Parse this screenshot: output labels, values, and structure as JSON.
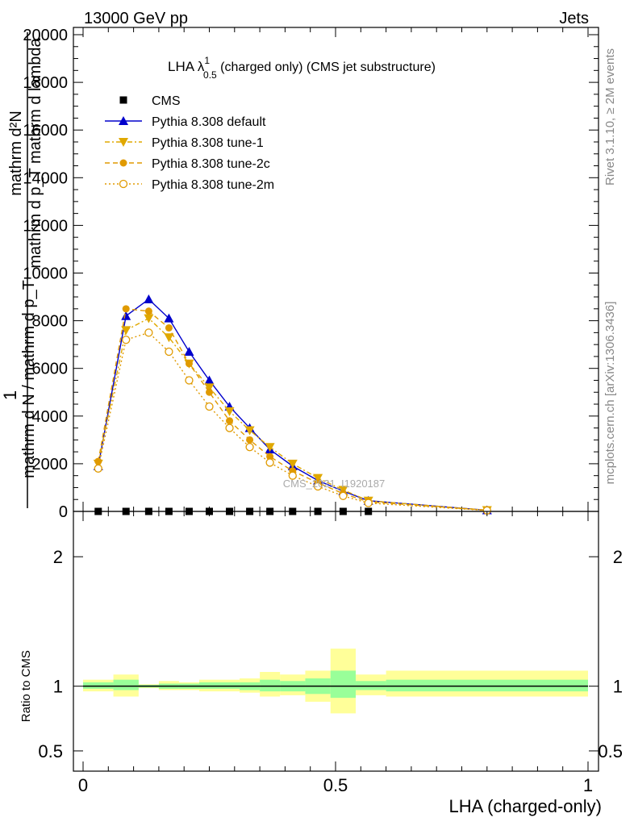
{
  "header": {
    "left": "13000 GeV pp",
    "right": "Jets"
  },
  "title": {
    "main": "LHA λ",
    "superscript": "1",
    "subscript": "0.5",
    "suffix": " (charged only) (CMS jet substructure)"
  },
  "side": {
    "rivet": "Rivet 3.1.10, ≥ 2M events",
    "mcplots": "mcplots.cern.ch [arXiv:1306.3436]"
  },
  "watermark": "CMS_2021_I1920187",
  "chart_data": [
    {
      "type": "line",
      "ylabel_top": "1",
      "ylabel_lines": [
        "mathrm d²N",
        "mathrm d p_T mathrm d lambda"
      ],
      "ylabel_lines2": [
        "mathrm d N / mathrm d p_T",
        "mathrm d N / mathrm d p_T"
      ],
      "ylabel_first": "mathrm d²N",
      "ylabel_second": "mathrm d p_T mathrm d lambda",
      "ylabel_third": "mathrm d N / mathrm d p_T",
      "xlim": [
        0,
        1
      ],
      "ylim": [
        0,
        20000
      ],
      "yticks": [
        "0",
        "2000",
        "4000",
        "6000",
        "8000",
        "10000",
        "12000",
        "14000",
        "16000",
        "18000",
        "20000"
      ],
      "ytick_values": [
        0,
        2000,
        4000,
        6000,
        8000,
        10000,
        12000,
        14000,
        16000,
        18000,
        20000
      ],
      "legend": [
        "CMS",
        "Pythia 8.308 default",
        "Pythia 8.308 tune-1",
        "Pythia 8.308 tune-2c",
        "Pythia 8.308 tune-2m"
      ],
      "legend_position": "top-left",
      "series": [
        {
          "name": "CMS",
          "color": "#000000",
          "marker": "square",
          "x": [
            0.03,
            0.085,
            0.13,
            0.17,
            0.21,
            0.25,
            0.29,
            0.33,
            0.37,
            0.415,
            0.465,
            0.515,
            0.565
          ],
          "y": [
            0,
            0,
            0,
            0,
            0,
            0,
            0,
            0,
            0,
            0,
            0,
            0,
            0
          ]
        },
        {
          "name": "Pythia 8.308 default",
          "color": "#0000cc",
          "marker": "triangle-up",
          "dash": "solid",
          "x": [
            0.03,
            0.085,
            0.13,
            0.17,
            0.21,
            0.25,
            0.29,
            0.33,
            0.37,
            0.415,
            0.465,
            0.515,
            0.565,
            0.8
          ],
          "y": [
            1900,
            8200,
            8900,
            8100,
            6700,
            5500,
            4400,
            3500,
            2600,
            1900,
            1300,
            850,
            450,
            50
          ]
        },
        {
          "name": "Pythia 8.308 tune-1",
          "color": "#e0a800",
          "marker": "triangle-down",
          "dash": "dashdot",
          "x": [
            0.03,
            0.085,
            0.13,
            0.17,
            0.21,
            0.25,
            0.29,
            0.33,
            0.37,
            0.415,
            0.465,
            0.515,
            0.565,
            0.8
          ],
          "y": [
            2000,
            7600,
            8100,
            7300,
            6200,
            5200,
            4200,
            3400,
            2700,
            2000,
            1400,
            900,
            450,
            50
          ]
        },
        {
          "name": "Pythia 8.308 tune-2c",
          "color": "#e09a00",
          "marker": "circle",
          "dash": "dashed",
          "x": [
            0.03,
            0.085,
            0.13,
            0.17,
            0.21,
            0.25,
            0.29,
            0.33,
            0.37,
            0.415,
            0.465,
            0.515,
            0.565,
            0.8
          ],
          "y": [
            2100,
            8500,
            8400,
            7700,
            6200,
            5000,
            3800,
            3000,
            2300,
            1700,
            1200,
            750,
            400,
            50
          ]
        },
        {
          "name": "Pythia 8.308 tune-2m",
          "color": "#e09a00",
          "marker": "open-circle",
          "dash": "dotted",
          "x": [
            0.03,
            0.085,
            0.13,
            0.17,
            0.21,
            0.25,
            0.29,
            0.33,
            0.37,
            0.415,
            0.465,
            0.515,
            0.565,
            0.8
          ],
          "y": [
            1800,
            7200,
            7500,
            6700,
            5500,
            4400,
            3500,
            2700,
            2050,
            1500,
            1050,
            650,
            350,
            40
          ]
        }
      ]
    },
    {
      "type": "area",
      "ylabel": "Ratio to CMS",
      "xlabel": "LHA (charged-only)",
      "xlim": [
        0,
        1
      ],
      "ylim": [
        0.35,
        2.35
      ],
      "yticks": [
        "0.5",
        "1",
        "2"
      ],
      "ytick_values": [
        0.5,
        1,
        2
      ],
      "xticks": [
        "0",
        "0.5",
        "1"
      ],
      "xtick_values": [
        0,
        0.5,
        1
      ],
      "reference_line": 1,
      "bands": [
        {
          "x0": 0.0,
          "x1": 0.06,
          "inner": [
            0.98,
            1.03
          ],
          "outer": [
            0.96,
            1.05
          ]
        },
        {
          "x0": 0.06,
          "x1": 0.11,
          "inner": [
            0.97,
            1.05
          ],
          "outer": [
            0.92,
            1.09
          ]
        },
        {
          "x0": 0.11,
          "x1": 0.15,
          "inner": [
            0.99,
            1.01
          ],
          "outer": [
            0.985,
            1.015
          ]
        },
        {
          "x0": 0.15,
          "x1": 0.19,
          "inner": [
            0.98,
            1.02
          ],
          "outer": [
            0.97,
            1.04
          ]
        },
        {
          "x0": 0.19,
          "x1": 0.23,
          "inner": [
            0.98,
            1.02
          ],
          "outer": [
            0.97,
            1.03
          ]
        },
        {
          "x0": 0.23,
          "x1": 0.27,
          "inner": [
            0.98,
            1.03
          ],
          "outer": [
            0.96,
            1.05
          ]
        },
        {
          "x0": 0.27,
          "x1": 0.31,
          "inner": [
            0.98,
            1.03
          ],
          "outer": [
            0.96,
            1.05
          ]
        },
        {
          "x0": 0.31,
          "x1": 0.35,
          "inner": [
            0.97,
            1.03
          ],
          "outer": [
            0.95,
            1.06
          ]
        },
        {
          "x0": 0.35,
          "x1": 0.39,
          "inner": [
            0.96,
            1.05
          ],
          "outer": [
            0.92,
            1.11
          ]
        },
        {
          "x0": 0.39,
          "x1": 0.44,
          "inner": [
            0.96,
            1.04
          ],
          "outer": [
            0.93,
            1.09
          ]
        },
        {
          "x0": 0.44,
          "x1": 0.49,
          "inner": [
            0.94,
            1.06
          ],
          "outer": [
            0.88,
            1.12
          ]
        },
        {
          "x0": 0.49,
          "x1": 0.54,
          "inner": [
            0.91,
            1.12
          ],
          "outer": [
            0.79,
            1.29
          ]
        },
        {
          "x0": 0.54,
          "x1": 0.6,
          "inner": [
            0.97,
            1.04
          ],
          "outer": [
            0.93,
            1.09
          ]
        },
        {
          "x0": 0.6,
          "x1": 1.0,
          "inner": [
            0.96,
            1.05
          ],
          "outer": [
            0.92,
            1.12
          ]
        }
      ]
    }
  ]
}
